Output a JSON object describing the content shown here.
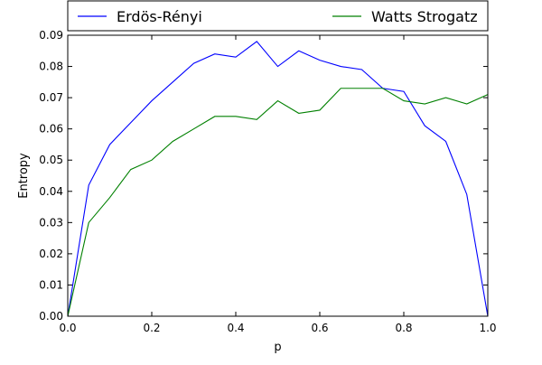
{
  "chart_data": {
    "type": "line",
    "xlabel": "p",
    "ylabel": "Entropy",
    "xlim": [
      0.0,
      1.0
    ],
    "ylim": [
      0.0,
      0.09
    ],
    "x_ticks": [
      0.0,
      0.2,
      0.4,
      0.6,
      0.8,
      1.0
    ],
    "x_tick_labels": [
      "0.0",
      "0.2",
      "0.4",
      "0.6",
      "0.8",
      "1.0"
    ],
    "y_ticks": [
      0.0,
      0.01,
      0.02,
      0.03,
      0.04,
      0.05,
      0.06,
      0.07,
      0.08,
      0.09
    ],
    "y_tick_labels": [
      "0.00",
      "0.01",
      "0.02",
      "0.03",
      "0.04",
      "0.05",
      "0.06",
      "0.07",
      "0.08",
      "0.09"
    ],
    "grid": false,
    "legend": {
      "placement": "top",
      "ncol": 2
    },
    "x": [
      0.0,
      0.05,
      0.1,
      0.15,
      0.2,
      0.25,
      0.3,
      0.35,
      0.4,
      0.45,
      0.5,
      0.55,
      0.6,
      0.65,
      0.7,
      0.75,
      0.8,
      0.85,
      0.9,
      0.95,
      1.0
    ],
    "series": [
      {
        "name": "Erdös-Rényi",
        "color": "#0000ff",
        "values": [
          0.0,
          0.042,
          0.055,
          0.062,
          0.069,
          0.075,
          0.081,
          0.084,
          0.083,
          0.088,
          0.08,
          0.085,
          0.082,
          0.08,
          0.079,
          0.073,
          0.072,
          0.061,
          0.056,
          0.039,
          0.0
        ]
      },
      {
        "name": "Watts Strogatz",
        "color": "#008000",
        "values": [
          0.0,
          0.03,
          0.038,
          0.047,
          0.05,
          0.056,
          0.06,
          0.064,
          0.064,
          0.063,
          0.069,
          0.065,
          0.066,
          0.073,
          0.073,
          0.073,
          0.069,
          0.068,
          0.07,
          0.068,
          0.071
        ]
      }
    ]
  }
}
